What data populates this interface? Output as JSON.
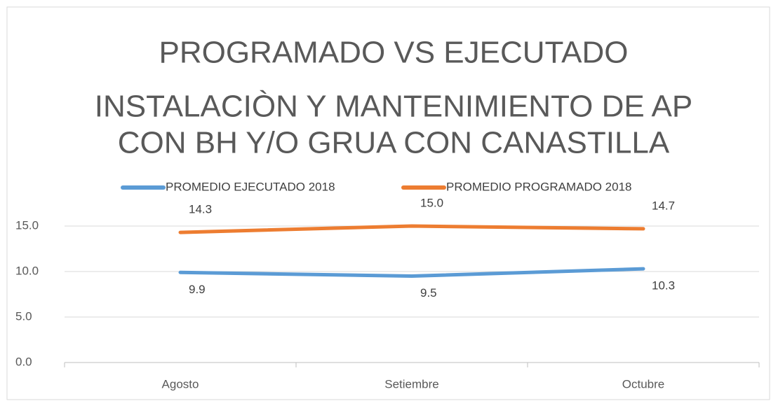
{
  "chart_data": {
    "type": "line",
    "title": [
      "PROGRAMADO VS EJECUTADO",
      "INSTALACIÒN Y MANTENIMIENTO DE AP",
      "CON  BH Y/O GRUA CON CANASTILLA"
    ],
    "categories": [
      "Agosto",
      "Setiembre",
      "Octubre"
    ],
    "series": [
      {
        "name": "PROMEDIO EJECUTADO 2018",
        "color": "#5b9bd5",
        "values": [
          9.9,
          9.5,
          10.3
        ],
        "value_labels": [
          "9.9",
          "9.5",
          "10.3"
        ]
      },
      {
        "name": "PROMEDIO PROGRAMADO 2018",
        "color": "#ed7d31",
        "values": [
          14.3,
          15,
          14.7
        ],
        "value_labels": [
          "14.3",
          "15.0",
          "14.7"
        ]
      }
    ],
    "ylim": [
      0,
      16
    ],
    "yticks": [
      {
        "value": 0,
        "label": "0.0"
      },
      {
        "value": 5,
        "label": "5.0"
      },
      {
        "value": 10,
        "label": "10.0"
      },
      {
        "value": 15,
        "label": "15.0"
      }
    ],
    "grid": true,
    "legend": "top"
  }
}
